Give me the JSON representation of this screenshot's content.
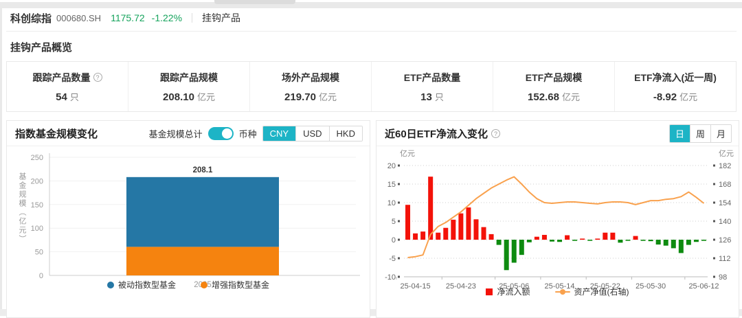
{
  "header": {
    "index_name": "科创综指",
    "index_code": "000680.SH",
    "price": "1175.72",
    "change": "-1.22%",
    "tab_label": "挂钩产品"
  },
  "overview": {
    "title": "挂钩产品概览",
    "stats": [
      {
        "label": "跟踪产品数量",
        "has_help": true,
        "value": "54",
        "unit": "只"
      },
      {
        "label": "跟踪产品规模",
        "has_help": false,
        "value": "208.10",
        "unit": "亿元"
      },
      {
        "label": "场外产品规模",
        "has_help": false,
        "value": "219.70",
        "unit": "亿元"
      },
      {
        "label": "ETF产品数量",
        "has_help": false,
        "value": "13",
        "unit": "只"
      },
      {
        "label": "ETF产品规模",
        "has_help": false,
        "value": "152.68",
        "unit": "亿元"
      },
      {
        "label": "ETF净流入(近一周)",
        "has_help": false,
        "value": "-8.92",
        "unit": "亿元"
      }
    ],
    "help_glyph": "?"
  },
  "fund_panel": {
    "title": "指数基金规模变化",
    "toggle_label": "基金规模总计",
    "currency_label": "币种",
    "currencies": [
      "CNY",
      "USD",
      "HKD"
    ],
    "selected_currency": "CNY"
  },
  "flow_panel": {
    "title": "近60日ETF净流入变化",
    "periods": [
      "日",
      "周",
      "月"
    ],
    "selected_period": "日",
    "help_glyph": "?"
  },
  "colors": {
    "accent_teal": "#1db4c6",
    "price_green": "#15a35c",
    "bar_blue": "#2577a5",
    "bar_orange": "#f5830f",
    "flow_red": "#f31209",
    "flow_green": "#0e8b10",
    "nav_line_orange": "#f9a14d"
  },
  "chart_data": [
    {
      "type": "bar",
      "stacked": true,
      "title": "指数基金规模变化",
      "categories": [
        "2025"
      ],
      "series": [
        {
          "name": "增强指数型基金",
          "values": [
            60.5
          ],
          "color": "#f5830f",
          "position": "bottom"
        },
        {
          "name": "被动指数型基金",
          "values": [
            147.6
          ],
          "color": "#2577a5",
          "position": "top"
        }
      ],
      "total_label": "208.1",
      "ylabel": "基金规模（亿元）",
      "xlabel": "2025",
      "ylim": [
        0,
        250
      ],
      "yticks": [
        0,
        50,
        100,
        150,
        200,
        250
      ],
      "grid": true,
      "legend": [
        {
          "label": "被动指数型基金",
          "color": "#2577a5"
        },
        {
          "label": "增强指数型基金",
          "color": "#f5830f"
        }
      ],
      "legend_position": "bottom"
    },
    {
      "type": "combo",
      "title": "近60日ETF净流入变化",
      "left_axis": {
        "title": "亿元",
        "ticks": [
          20,
          15,
          10,
          5,
          0,
          -5,
          -10
        ],
        "lim": [
          -10,
          20
        ]
      },
      "right_axis": {
        "title": "亿元",
        "ticks": [
          182,
          168,
          154,
          140,
          126,
          112,
          98
        ],
        "lim": [
          98,
          182
        ]
      },
      "bars": {
        "name": "净流入额",
        "axis": "left",
        "positive_color": "#f31209",
        "negative_color": "#0e8b10",
        "values": [
          9.4,
          1.7,
          2.2,
          17.0,
          1.9,
          3.2,
          5.4,
          7.1,
          8.7,
          5.5,
          3.4,
          1.5,
          -1.4,
          -8.2,
          -6.2,
          -4.1,
          -0.7,
          0.8,
          1.3,
          -0.5,
          -0.6,
          1.2,
          -0.3,
          0.15,
          -0.15,
          0.2,
          1.9,
          1.9,
          -0.8,
          -0.2,
          1.0,
          -0.3,
          -0.4,
          -1.3,
          -1.6,
          -2.3,
          -3.6,
          -1.4,
          -0.6,
          -0.3
        ]
      },
      "line": {
        "name": "资产净值(右轴)",
        "axis": "right",
        "color": "#f9a14d",
        "values": [
          112.5,
          113.2,
          114.5,
          130,
          136,
          139,
          143,
          147,
          152,
          157,
          161,
          165,
          168,
          171,
          173.5,
          168,
          162,
          157,
          154,
          153.5,
          154,
          154.5,
          154.5,
          154,
          153.5,
          153,
          154,
          154.5,
          154.5,
          154,
          152.5,
          154,
          155.5,
          155.5,
          156.5,
          157,
          158.5,
          162,
          158,
          153.5
        ]
      },
      "x_tick_labels": [
        "25-04-15",
        "25-04-23",
        "25-05-06",
        "25-05-14",
        "25-05-22",
        "25-05-30",
        "25-06-12"
      ],
      "x_tick_positions": [
        1,
        7,
        14,
        20,
        26,
        32,
        39
      ],
      "grid": "dotted",
      "legend": [
        {
          "label": "净流入额",
          "swatch": "red-square"
        },
        {
          "label": "资产净值(右轴)",
          "swatch": "orange-line"
        }
      ],
      "legend_position": "bottom"
    }
  ]
}
